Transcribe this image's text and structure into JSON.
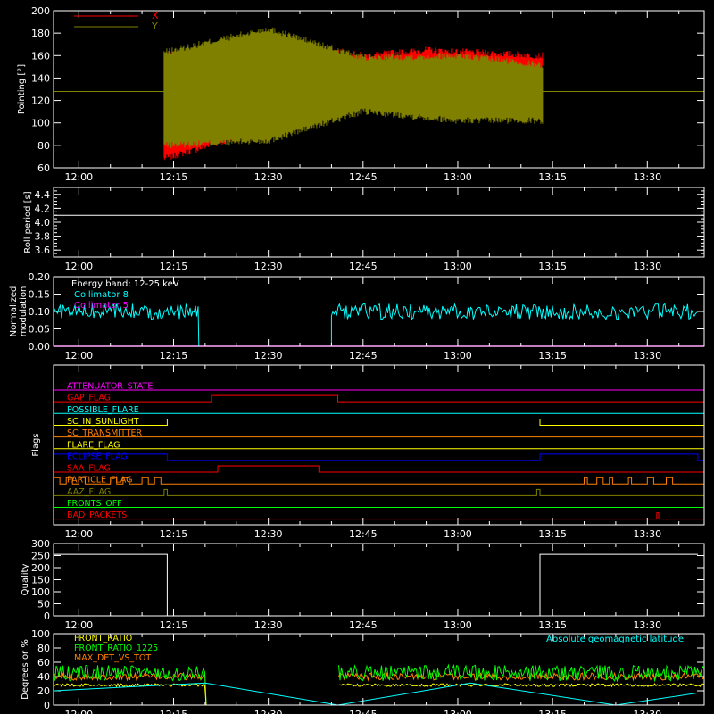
{
  "chart_data": [
    {
      "type": "line",
      "panel": "pointing",
      "ylabel": "Pointing [°]",
      "ylim": [
        60,
        200
      ],
      "yticks": [
        "60",
        "80",
        "100",
        "120",
        "140",
        "160",
        "180",
        "200"
      ],
      "xlim_minutes": [
        716,
        819
      ],
      "xticks": [
        {
          "m": 720,
          "label": "12:00"
        },
        {
          "m": 735,
          "label": "12:15"
        },
        {
          "m": 750,
          "label": "12:30"
        },
        {
          "m": 765,
          "label": "12:45"
        },
        {
          "m": 780,
          "label": "13:00"
        },
        {
          "m": 795,
          "label": "13:15"
        },
        {
          "m": 810,
          "label": "13:30"
        }
      ],
      "legend": [
        {
          "name": "X",
          "color": "#ff0000"
        },
        {
          "name": "Y",
          "color": "#808000"
        }
      ],
      "data_start": "12:13:30",
      "data_end": "13:13:30",
      "series": [
        {
          "name": "X",
          "color": "#ff0000",
          "center": 128,
          "envelope": [
            {
              "t": "12:13:30",
              "min": 68,
              "max": 160
            },
            {
              "t": "12:30",
              "min": 95,
              "max": 175
            },
            {
              "t": "12:45",
              "min": 130,
              "max": 160
            },
            {
              "t": "12:55",
              "min": 148,
              "max": 165
            },
            {
              "t": "13:13",
              "min": 148,
              "max": 160
            }
          ]
        },
        {
          "name": "Y",
          "color": "#808000",
          "center": 128,
          "envelope": [
            {
              "t": "12:13:30",
              "min": 80,
              "max": 163
            },
            {
              "t": "12:30",
              "min": 84,
              "max": 184
            },
            {
              "t": "12:45",
              "min": 110,
              "max": 158
            },
            {
              "t": "13:00",
              "min": 102,
              "max": 160
            },
            {
              "t": "13:13",
              "min": 102,
              "max": 152
            }
          ]
        }
      ],
      "reference_line": {
        "value": 128,
        "color": "#808000"
      }
    },
    {
      "type": "line",
      "panel": "roll_period",
      "ylabel": "Roll period [s]",
      "ylim": [
        3.5,
        4.5
      ],
      "yticks": [
        "3.6",
        "3.8",
        "4.0",
        "4.2",
        "4.4"
      ],
      "series": [
        {
          "name": "roll",
          "color": "#ffffff",
          "value": 4.1
        }
      ]
    },
    {
      "type": "line",
      "panel": "modulation",
      "ylabel": "Normalized modulation",
      "ylim": [
        0,
        0.2
      ],
      "yticks": [
        "0.00",
        "0.05",
        "0.10",
        "0.15",
        "0.20"
      ],
      "annotations": [
        "Energy band: 12-25 keV"
      ],
      "legend": [
        {
          "name": "Collimator 8",
          "color": "#00ffff"
        },
        {
          "name": "Collimator 5",
          "color": "#ff00ff"
        }
      ],
      "series": [
        {
          "name": "Collimator 8",
          "color": "#00ffff",
          "segments": [
            {
              "start": "11:56",
              "end": "12:19",
              "mean": 0.1
            },
            {
              "start": "12:40",
              "end": "13:38",
              "mean": 0.1
            }
          ]
        },
        {
          "name": "Collimator 5",
          "color": "#ff00ff",
          "value": 0.0
        }
      ]
    },
    {
      "type": "line",
      "panel": "flags",
      "ylabel": "Flags",
      "flags": [
        {
          "name": "ATTENUATOR_STATE",
          "color": "#ff00ff",
          "high": []
        },
        {
          "name": "GAP_FLAG",
          "color": "#ff0000",
          "high": [
            [
              "12:21",
              "12:41"
            ]
          ]
        },
        {
          "name": "POSSIBLE_FLARE",
          "color": "#00ffff",
          "high": []
        },
        {
          "name": "SC_IN_SUNLIGHT",
          "color": "#ffff00",
          "high": [
            [
              "12:14",
              "13:13"
            ]
          ]
        },
        {
          "name": "SC_TRANSMITTER",
          "color": "#ff8000",
          "high": []
        },
        {
          "name": "FLARE_FLAG",
          "color": "#ffff00",
          "high": []
        },
        {
          "name": "ECLIPSE_FLAG",
          "color": "#0000ff",
          "high": [
            [
              "11:56",
              "12:14"
            ],
            [
              "13:13",
              "13:38"
            ]
          ]
        },
        {
          "name": "SAA_FLAG",
          "color": "#ff0000",
          "high": [
            [
              "12:22",
              "12:38"
            ]
          ]
        },
        {
          "name": "PARTICLE_FLAG",
          "color": "#ff8000",
          "high": [
            [
              "11:56",
              "11:57"
            ],
            [
              "11:58",
              "11:59"
            ],
            [
              "12:00",
              "12:01"
            ],
            [
              "12:05",
              "12:06"
            ],
            [
              "12:07",
              "12:08"
            ],
            [
              "12:10",
              "12:11"
            ],
            [
              "12:12",
              "12:13"
            ],
            [
              "13:20",
              "13:20.5"
            ],
            [
              "13:22",
              "13:23"
            ],
            [
              "13:24",
              "13:24.5"
            ],
            [
              "13:27",
              "13:27.5"
            ],
            [
              "13:30",
              "13:31"
            ],
            [
              "13:33",
              "13:34"
            ]
          ]
        },
        {
          "name": "AAZ_FLAG",
          "color": "#808000",
          "high": [
            [
              "12:13.5",
              "12:14"
            ],
            [
              "13:12.5",
              "13:13"
            ]
          ]
        },
        {
          "name": "FRONTS_OFF",
          "color": "#00ff00",
          "high": []
        },
        {
          "name": "BAD_PACKETS",
          "color": "#ff0000",
          "high": [
            [
              "13:31.5",
              "13:31.8"
            ]
          ]
        }
      ]
    },
    {
      "type": "line",
      "panel": "quality",
      "ylabel": "Quality",
      "ylim": [
        0,
        300
      ],
      "yticks": [
        "0",
        "50",
        "100",
        "150",
        "200",
        "250",
        "300"
      ],
      "series": [
        {
          "name": "quality",
          "color": "#ffffff",
          "steps": [
            [
              "11:56",
              255
            ],
            [
              "12:14",
              0
            ],
            [
              "13:13",
              255
            ],
            [
              "13:38",
              255
            ]
          ]
        }
      ]
    },
    {
      "type": "line",
      "panel": "ratios",
      "ylabel": "Degrees or %",
      "ylim": [
        0,
        100
      ],
      "yticks": [
        "0",
        "20",
        "40",
        "60",
        "80",
        "100"
      ],
      "legend": [
        {
          "name": "FRONT_RATIO",
          "color": "#ffff00"
        },
        {
          "name": "FRONT_RATIO_1225",
          "color": "#00ff00"
        },
        {
          "name": "MAX_DET_VS_TOT",
          "color": "#ff8000"
        }
      ],
      "annotations": [
        "Absolute geomagnetic latitude"
      ],
      "series": [
        {
          "name": "FRONT_RATIO",
          "color": "#ffff00",
          "mean": 28
        },
        {
          "name": "FRONT_RATIO_1225",
          "color": "#00ff00",
          "mean": 45
        },
        {
          "name": "MAX_DET_VS_TOT",
          "color": "#ff8000",
          "mean": 40
        },
        {
          "name": "Absolute geomagnetic latitude",
          "color": "#00ffff",
          "points": [
            [
              "11:56",
              20
            ],
            [
              "12:20",
              31
            ],
            [
              "12:41",
              0
            ],
            [
              "13:02",
              31
            ],
            [
              "13:25",
              0
            ],
            [
              "13:38",
              17
            ]
          ]
        }
      ]
    }
  ]
}
